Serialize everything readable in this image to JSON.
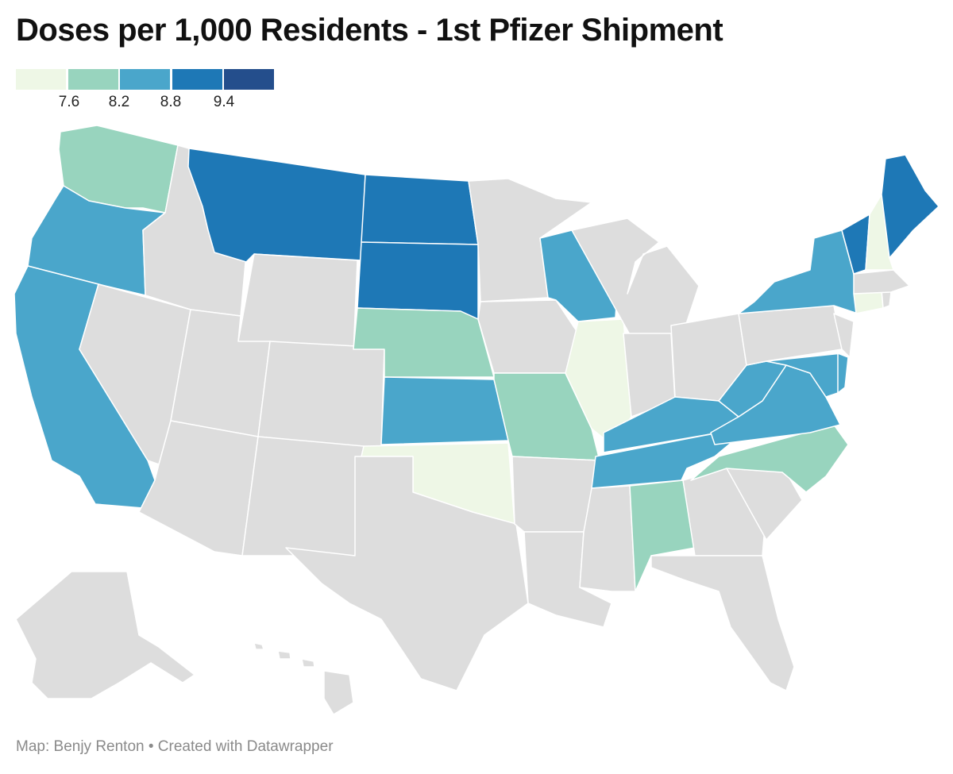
{
  "title": "Doses per 1,000 Residents - 1st Pfizer Shipment",
  "legend": {
    "colors": [
      "#eef7e6",
      "#98d4be",
      "#4aa6cb",
      "#1e78b6",
      "#244e8c"
    ],
    "ticks": [
      "7.6",
      "8.2",
      "8.8",
      "9.4"
    ]
  },
  "map": {
    "no_data_color": "#dddddd",
    "states": {
      "WA": 1,
      "OR": 2,
      "CA": 2,
      "MT": 3,
      "ND": 3,
      "SD": 3,
      "NE": 1,
      "KS": 2,
      "OK": 0,
      "MO": 1,
      "IL": 0,
      "WI": 2,
      "KY": 2,
      "TN": 2,
      "AL": 1,
      "NC": 1,
      "VA": 2,
      "WV": 2,
      "MD": 2,
      "DE": 2,
      "NY": 2,
      "VT": 3,
      "NH": 0,
      "ME": 3,
      "CT": 0
    }
  },
  "footer": "Map: Benjy Renton • Created with Datawrapper"
}
